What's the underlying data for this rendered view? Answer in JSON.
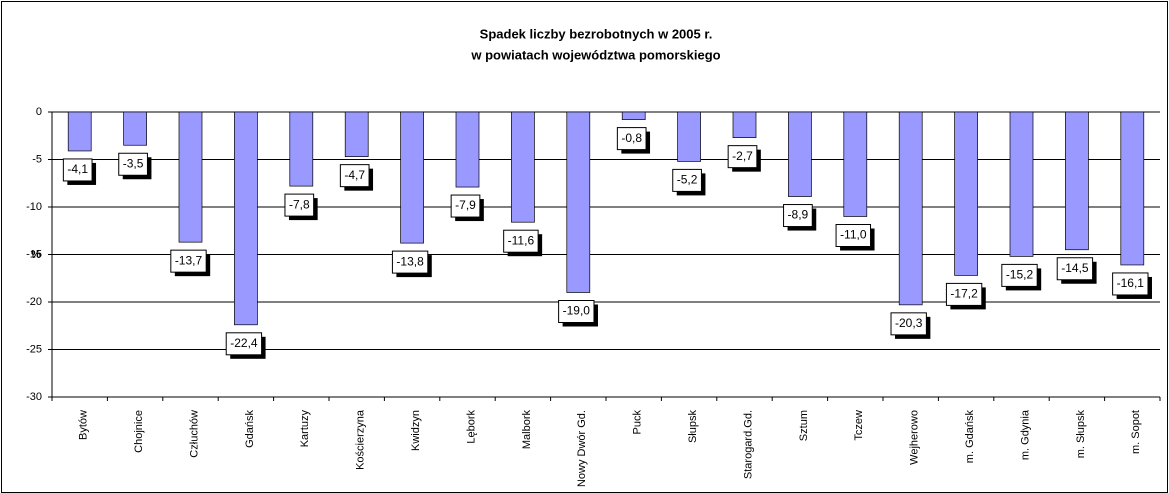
{
  "chart_data": {
    "type": "bar",
    "title": [
      "Spadek liczby bezrobotnych w 2005 r.",
      "w powiatach województwa pomorskiego"
    ],
    "y_label": "%",
    "categories": [
      "Bytów",
      "Chojnice",
      "Człuchów",
      "Gdańsk",
      "Kartuzy",
      "Kościerzyna",
      "Kwidzyn",
      "Lębork",
      "Malbork",
      "Nowy Dwór Gd.",
      "Puck",
      "Słupsk",
      "Starogard.Gd.",
      "Sztum",
      "Tczew",
      "Wejherowo",
      "m. Gdańsk",
      "m. Gdynia",
      "m. Słupsk",
      "m. Sopot"
    ],
    "values": [
      -4.1,
      -3.5,
      -13.7,
      -22.4,
      -7.8,
      -4.7,
      -13.8,
      -7.9,
      -11.6,
      -19.0,
      -0.8,
      -5.2,
      -2.7,
      -8.9,
      -11.0,
      -20.3,
      -17.2,
      -15.2,
      -14.5,
      -16.1
    ],
    "value_labels": [
      "-4,1",
      "-3,5",
      "-13,7",
      "-22,4",
      "-7,8",
      "-4,7",
      "-13,8",
      "-7,9",
      "-11,6",
      "-19,0",
      "-0,8",
      "-5,2",
      "-2,7",
      "-8,9",
      "-11,0",
      "-20,3",
      "-17,2",
      "-15,2",
      "-14,5",
      "-16,1"
    ],
    "color": "#9999ff",
    "ylim": [
      -30,
      0
    ],
    "yticks": [
      0,
      -5,
      -10,
      -15,
      -20,
      -25,
      -30
    ],
    "grid": true
  }
}
